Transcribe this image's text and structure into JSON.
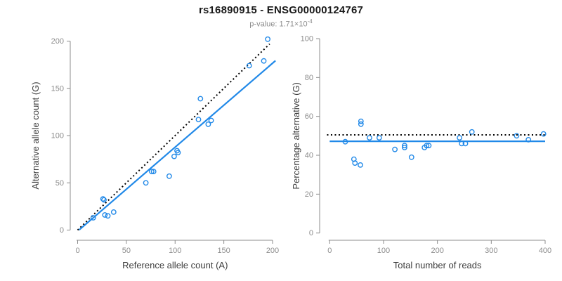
{
  "header": {
    "title": "rs16890915 - ENSG00000124767",
    "p_value_text": "p-value: 1.71×10",
    "p_value_exponent": "-4"
  },
  "colors": {
    "accent_blue": "#2189E8",
    "dotted_line": "#000000",
    "axis_gray": "#8C8C8C",
    "tick_label_gray": "#8C8C8C",
    "axis_title_color": "#3D3D3D"
  },
  "chart_data": [
    {
      "name": "allele-counts-scatter",
      "type": "scatter",
      "title": "",
      "xlabel": "Reference allele count (A)",
      "ylabel": "Alternative allele count (G)",
      "xlim": [
        0,
        200
      ],
      "ylim": [
        0,
        200
      ],
      "xticks": [
        0,
        50,
        100,
        150,
        200
      ],
      "yticks": [
        0,
        50,
        100,
        150,
        200
      ],
      "grid": false,
      "legend": false,
      "points": [
        [
          16,
          13
        ],
        [
          26,
          33
        ],
        [
          27,
          32
        ],
        [
          28,
          16
        ],
        [
          31,
          15
        ],
        [
          37,
          19
        ],
        [
          70,
          50
        ],
        [
          76,
          62
        ],
        [
          78,
          62
        ],
        [
          94,
          57
        ],
        [
          99,
          78
        ],
        [
          102,
          84
        ],
        [
          103,
          82
        ],
        [
          124,
          117
        ],
        [
          126,
          139
        ],
        [
          134,
          112
        ],
        [
          137,
          116
        ],
        [
          176,
          174
        ],
        [
          191,
          179
        ],
        [
          195,
          202
        ]
      ],
      "lines": [
        {
          "name": "identity-diagonal",
          "style": "dotted",
          "slope": 1,
          "intercept": 0,
          "x_range": [
            0,
            197
          ]
        },
        {
          "name": "regression-fit",
          "style": "solid",
          "slope": 0.889,
          "intercept": -1.2,
          "x_range": [
            1.5,
            203
          ]
        }
      ]
    },
    {
      "name": "percentage-alternative-scatter",
      "type": "scatter",
      "title": "",
      "xlabel": "Total number of reads",
      "ylabel": "Percentage alternative (G)",
      "xlim": [
        0,
        400
      ],
      "ylim": [
        0,
        100
      ],
      "xticks": [
        0,
        100,
        200,
        300,
        400
      ],
      "yticks": [
        0,
        20,
        40,
        60,
        80,
        100
      ],
      "grid": false,
      "legend": false,
      "points": [
        [
          29,
          47
        ],
        [
          45,
          38
        ],
        [
          47,
          36
        ],
        [
          57,
          35
        ],
        [
          58,
          57.5
        ],
        [
          58,
          56
        ],
        [
          74,
          49
        ],
        [
          92,
          49
        ],
        [
          121,
          43
        ],
        [
          139,
          45
        ],
        [
          139,
          44
        ],
        [
          152,
          39
        ],
        [
          176,
          44
        ],
        [
          180,
          45
        ],
        [
          184,
          45
        ],
        [
          241,
          49
        ],
        [
          245,
          46
        ],
        [
          252,
          46
        ],
        [
          264,
          52
        ],
        [
          347,
          50
        ],
        [
          369,
          48
        ],
        [
          397,
          51
        ]
      ],
      "lines": [
        {
          "name": "expected-50pct",
          "style": "dotted",
          "slope": 0,
          "intercept": 50.5,
          "x_range": [
            -5,
            402
          ]
        },
        {
          "name": "regression-fit",
          "style": "solid",
          "slope": 0,
          "intercept": 47.2,
          "x_range": [
            0,
            400
          ]
        }
      ]
    }
  ]
}
